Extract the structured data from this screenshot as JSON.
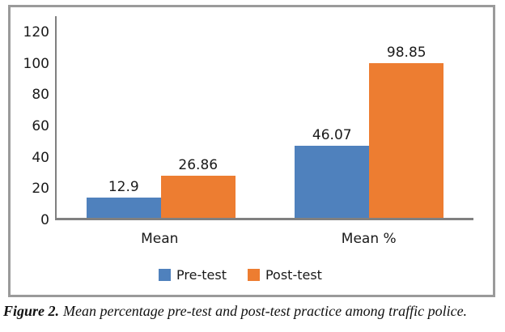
{
  "figure": {
    "caption_label": "Figure 2.",
    "caption_text": "Mean percentage pre-test and post-test practice among traffic police."
  },
  "chart_data": {
    "type": "bar",
    "title": "",
    "xlabel": "",
    "ylabel": "",
    "categories": [
      "Mean",
      "Mean %"
    ],
    "series": [
      {
        "name": "Pre-test",
        "color": "#4F81BD",
        "values": [
          12.9,
          46.07
        ],
        "labels": [
          "12.9",
          "46.07"
        ]
      },
      {
        "name": "Post-test",
        "color": "#ED7D31",
        "values": [
          26.86,
          98.85
        ],
        "labels": [
          "26.86",
          "98.85"
        ]
      }
    ],
    "ylim": [
      0,
      120
    ],
    "yticks": [
      0,
      20,
      40,
      60,
      80,
      100,
      120
    ],
    "grid": false,
    "legend_position": "bottom",
    "axis_color": "#808080",
    "frame_color": "#9a9a9a",
    "text_color": "#1a1a1a"
  }
}
